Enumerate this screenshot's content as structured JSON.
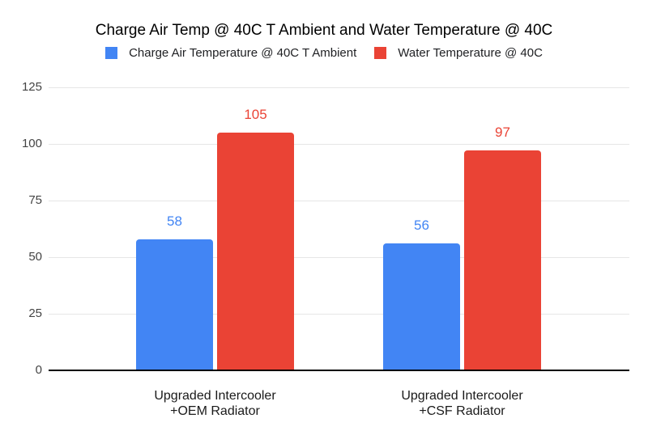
{
  "chart_data": {
    "type": "bar",
    "title": "Charge Air Temp @ 40C T Ambient and Water Temperature @ 40C",
    "categories": [
      "Upgraded Intercooler\n+OEM Radiator",
      "Upgraded Intercooler\n+CSF Radiator"
    ],
    "series": [
      {
        "name": "Charge Air Temperature @ 40C T Ambient",
        "color": "#4285F4",
        "values": [
          58,
          56
        ]
      },
      {
        "name": "Water Temperature @ 40C",
        "color": "#EA4335",
        "values": [
          105,
          97
        ]
      }
    ],
    "value_labels": [
      [
        "58",
        "56"
      ],
      [
        "105",
        "97"
      ]
    ],
    "yticks": [
      0,
      25,
      50,
      75,
      100,
      125
    ],
    "ylim": [
      0,
      125
    ],
    "xlabel": "",
    "ylabel": "",
    "grid": true,
    "legend_position": "top",
    "colors": {
      "background": "#FFFFFF",
      "gridline": "#E6E6E6",
      "axis_line": "#000000",
      "tick_label": "#444444",
      "category_label": "#1A1A1A",
      "title": "#000000"
    }
  }
}
